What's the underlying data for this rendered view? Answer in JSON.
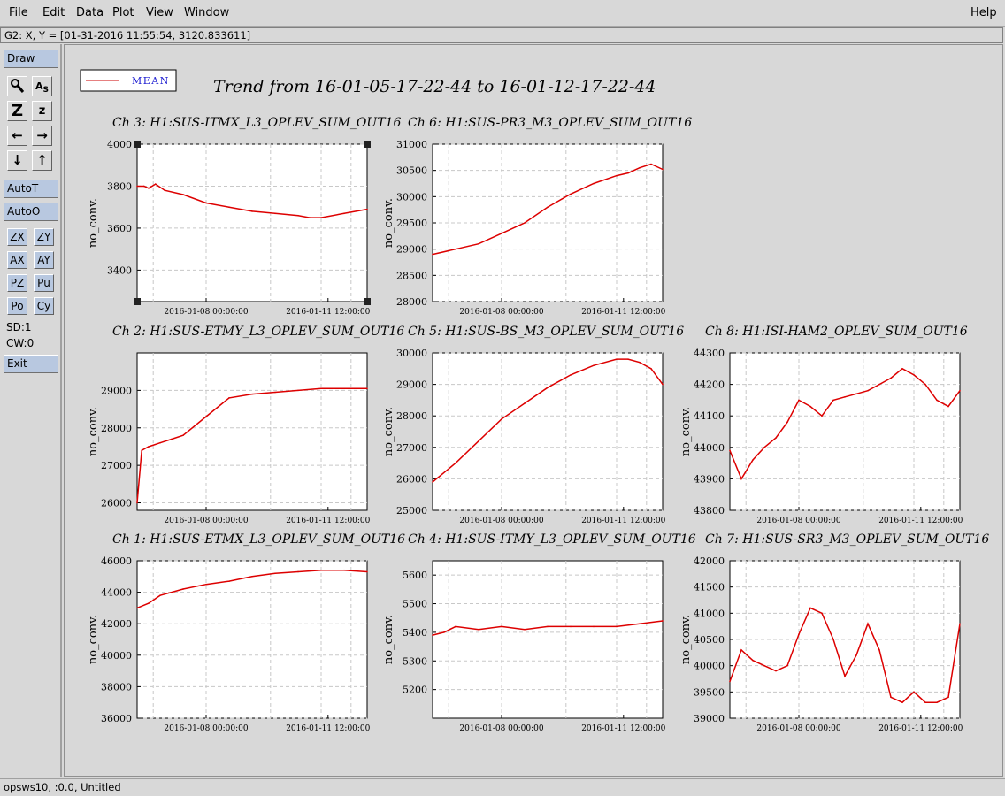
{
  "menubar": {
    "items": [
      {
        "label": "File"
      },
      {
        "label": "Edit"
      },
      {
        "label": "Data"
      },
      {
        "label": "Plot"
      },
      {
        "label": "View"
      },
      {
        "label": "Window"
      }
    ],
    "help_label": "Help"
  },
  "coord_readout": "G2: X, Y = [01-31-2016 11:55:54, 3120.833611]",
  "toolbar": {
    "draw_label": "Draw",
    "autot_label": "AutoT",
    "autoo_label": "AutoO",
    "small_buttons": [
      "ZX",
      "ZY",
      "AX",
      "AY",
      "PZ",
      "Pu",
      "Po",
      "Cy"
    ],
    "sd_label": "SD:1",
    "cw_label": "CW:0",
    "exit_label": "Exit"
  },
  "statusbar": "opsws10, :0.0, Untitled",
  "legend": {
    "label": "MEAN",
    "color": "#cc0000"
  },
  "main_title": "Trend from 16-01-05-17-22-44 to 16-01-12-17-22-44",
  "chart_data": [
    {
      "type": "line",
      "title": "Ch 3: H1:SUS-ITMX_L3_OPLEV_SUM_OUT16",
      "ylabel": "no_conv.",
      "xticks": [
        "2016-01-08 00:00:00",
        "2016-01-11 12:00:00"
      ],
      "ylim": [
        3250,
        4000
      ],
      "yticks": [
        3400,
        3600,
        3800,
        4000
      ],
      "series": [
        {
          "name": "MEAN",
          "x": [
            0,
            0.03,
            0.05,
            0.08,
            0.12,
            0.2,
            0.3,
            0.4,
            0.5,
            0.6,
            0.7,
            0.75,
            0.8,
            0.9,
            1.0
          ],
          "y": [
            3800,
            3800,
            3790,
            3810,
            3780,
            3760,
            3720,
            3700,
            3680,
            3670,
            3660,
            3650,
            3650,
            3670,
            3690
          ]
        }
      ]
    },
    {
      "type": "line",
      "title": "Ch 6: H1:SUS-PR3_M3_OPLEV_SUM_OUT16",
      "ylabel": "no_conv.",
      "xticks": [
        "2016-01-08 00:00:00",
        "2016-01-11 12:00:00"
      ],
      "ylim": [
        28000,
        31000
      ],
      "yticks": [
        28000,
        28500,
        29000,
        29500,
        30000,
        30500,
        31000
      ],
      "series": [
        {
          "name": "MEAN",
          "x": [
            0,
            0.1,
            0.2,
            0.3,
            0.4,
            0.5,
            0.6,
            0.7,
            0.8,
            0.85,
            0.9,
            0.95,
            1.0
          ],
          "y": [
            28900,
            29000,
            29100,
            29300,
            29500,
            29800,
            30050,
            30250,
            30400,
            30450,
            30550,
            30620,
            30520
          ]
        }
      ]
    },
    {
      "type": "line",
      "title": "Ch 2: H1:SUS-ETMY_L3_OPLEV_SUM_OUT16",
      "ylabel": "no_conv.",
      "xticks": [
        "2016-01-08 00:00:00",
        "2016-01-11 12:00:00"
      ],
      "ylim": [
        25800,
        30000
      ],
      "yticks": [
        26000,
        27000,
        28000,
        29000
      ],
      "series": [
        {
          "name": "MEAN",
          "x": [
            0,
            0.02,
            0.05,
            0.1,
            0.15,
            0.2,
            0.3,
            0.4,
            0.5,
            0.6,
            0.7,
            0.8,
            0.9,
            1.0
          ],
          "y": [
            26000,
            27400,
            27500,
            27600,
            27700,
            27800,
            28300,
            28800,
            28900,
            28950,
            29000,
            29050,
            29050,
            29050
          ]
        }
      ]
    },
    {
      "type": "line",
      "title": "Ch 5: H1:SUS-BS_M3_OPLEV_SUM_OUT16",
      "ylabel": "no_conv.",
      "xticks": [
        "2016-01-08 00:00:00",
        "2016-01-11 12:00:00"
      ],
      "ylim": [
        25000,
        30000
      ],
      "yticks": [
        25000,
        26000,
        27000,
        28000,
        29000,
        30000
      ],
      "series": [
        {
          "name": "MEAN",
          "x": [
            0,
            0.1,
            0.2,
            0.3,
            0.4,
            0.5,
            0.6,
            0.7,
            0.8,
            0.85,
            0.9,
            0.95,
            1.0
          ],
          "y": [
            25900,
            26500,
            27200,
            27900,
            28400,
            28900,
            29300,
            29600,
            29800,
            29800,
            29700,
            29500,
            29000
          ]
        }
      ]
    },
    {
      "type": "line",
      "title": "Ch 8: H1:ISI-HAM2_OPLEV_SUM_OUT16",
      "ylabel": "no_conv.",
      "xticks": [
        "2016-01-08 00:00:00",
        "2016-01-11 12:00:00"
      ],
      "ylim": [
        43800,
        44300
      ],
      "yticks": [
        43800,
        43900,
        44000,
        44100,
        44200,
        44300
      ],
      "series": [
        {
          "name": "MEAN",
          "x": [
            0,
            0.05,
            0.1,
            0.15,
            0.2,
            0.25,
            0.3,
            0.35,
            0.4,
            0.45,
            0.5,
            0.55,
            0.6,
            0.65,
            0.7,
            0.75,
            0.8,
            0.85,
            0.9,
            0.95,
            1.0
          ],
          "y": [
            43990,
            43900,
            43960,
            44000,
            44030,
            44080,
            44150,
            44130,
            44100,
            44150,
            44160,
            44170,
            44180,
            44200,
            44220,
            44250,
            44230,
            44200,
            44150,
            44130,
            44180
          ]
        }
      ]
    },
    {
      "type": "line",
      "title": "Ch 1: H1:SUS-ETMX_L3_OPLEV_SUM_OUT16",
      "ylabel": "no_conv.",
      "xticks": [
        "2016-01-08 00:00:00",
        "2016-01-11 12:00:00"
      ],
      "ylim": [
        36000,
        46000
      ],
      "yticks": [
        36000,
        38000,
        40000,
        42000,
        44000,
        46000
      ],
      "series": [
        {
          "name": "MEAN",
          "x": [
            0,
            0.05,
            0.1,
            0.2,
            0.3,
            0.4,
            0.5,
            0.6,
            0.7,
            0.8,
            0.9,
            1.0
          ],
          "y": [
            43000,
            43300,
            43800,
            44200,
            44500,
            44700,
            45000,
            45200,
            45300,
            45400,
            45400,
            45300
          ]
        }
      ]
    },
    {
      "type": "line",
      "title": "Ch 4: H1:SUS-ITMY_L3_OPLEV_SUM_OUT16",
      "ylabel": "no_conv.",
      "xticks": [
        "2016-01-08 00:00:00",
        "2016-01-11 12:00:00"
      ],
      "ylim": [
        5100,
        5650
      ],
      "yticks": [
        5200,
        5300,
        5400,
        5500,
        5600
      ],
      "series": [
        {
          "name": "MEAN",
          "x": [
            0,
            0.05,
            0.1,
            0.2,
            0.3,
            0.4,
            0.5,
            0.6,
            0.7,
            0.8,
            0.9,
            1.0
          ],
          "y": [
            5390,
            5400,
            5420,
            5410,
            5420,
            5410,
            5420,
            5420,
            5420,
            5420,
            5430,
            5440
          ]
        }
      ]
    },
    {
      "type": "line",
      "title": "Ch 7: H1:SUS-SR3_M3_OPLEV_SUM_OUT16",
      "ylabel": "no_conv.",
      "xticks": [
        "2016-01-08 00:00:00",
        "2016-01-11 12:00:00"
      ],
      "ylim": [
        39000,
        42000
      ],
      "yticks": [
        39000,
        39500,
        40000,
        40500,
        41000,
        41500,
        42000
      ],
      "series": [
        {
          "name": "MEAN",
          "x": [
            0,
            0.05,
            0.1,
            0.15,
            0.2,
            0.25,
            0.3,
            0.35,
            0.4,
            0.45,
            0.5,
            0.55,
            0.6,
            0.65,
            0.7,
            0.75,
            0.8,
            0.85,
            0.9,
            0.95,
            1.0
          ],
          "y": [
            39700,
            40300,
            40100,
            40000,
            39900,
            40000,
            40600,
            41100,
            41000,
            40500,
            39800,
            40200,
            40800,
            40300,
            39400,
            39300,
            39500,
            39300,
            39300,
            39400,
            40800
          ]
        }
      ]
    }
  ]
}
